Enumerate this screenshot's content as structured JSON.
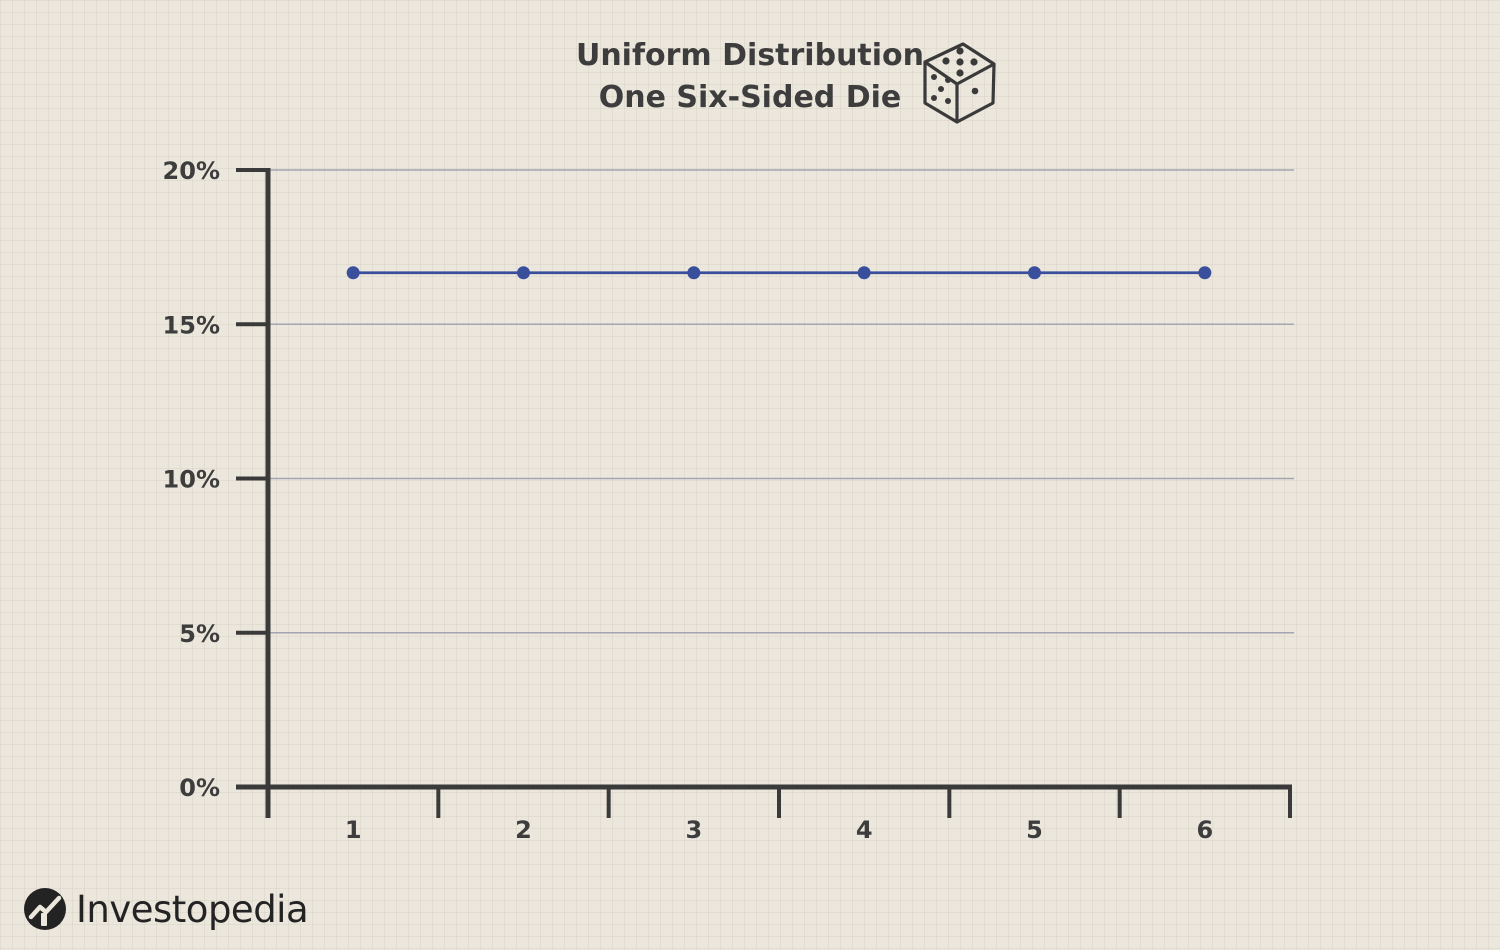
{
  "chart_data": {
    "type": "line",
    "title": "Uniform Distribution",
    "subtitle": "One Six-Sided Die",
    "categories": [
      "1",
      "2",
      "3",
      "4",
      "5",
      "6"
    ],
    "values": [
      16.67,
      16.67,
      16.67,
      16.67,
      16.67,
      16.67
    ],
    "y_ticks": [
      "0%",
      "5%",
      "10%",
      "15%",
      "20%"
    ],
    "y_tick_values": [
      0,
      5,
      10,
      15,
      20
    ],
    "ylim": [
      0,
      20
    ],
    "xlabel": "",
    "ylabel": "",
    "grid": true,
    "legend": "none",
    "series_color": "#3a4f9c",
    "axis_color": "#3a3a3a",
    "grid_color": "#a4a4b2"
  },
  "header": {
    "icon": "dice-icon"
  },
  "branding": {
    "name": "Investopedia",
    "icon": "investopedia-logo-icon"
  }
}
